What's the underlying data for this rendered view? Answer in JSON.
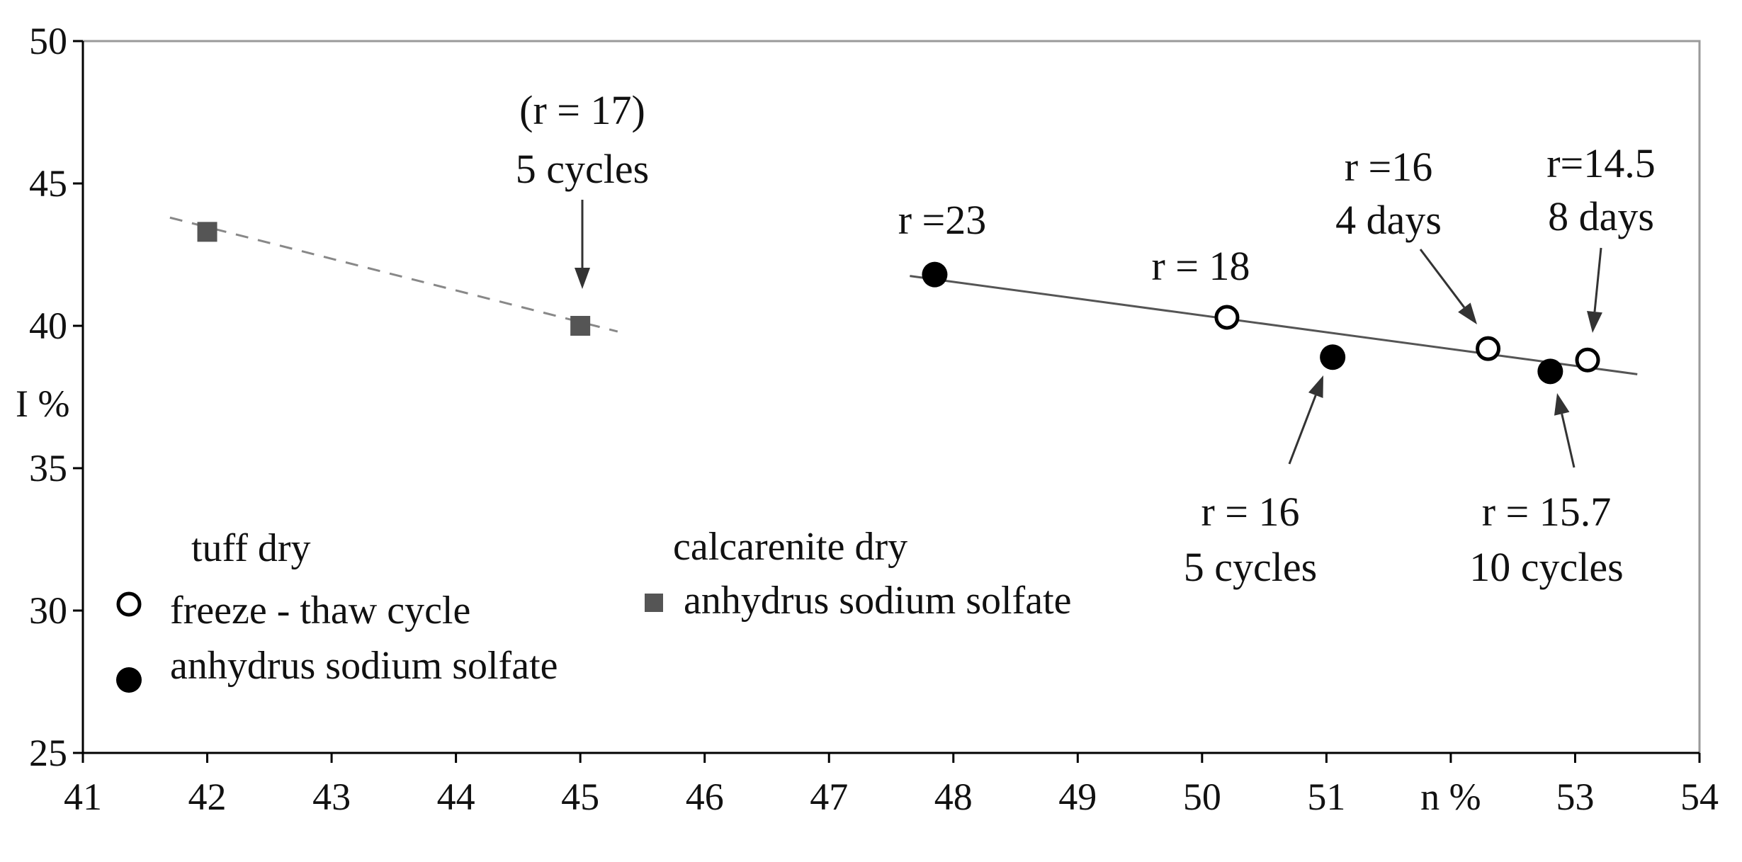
{
  "chart_data": {
    "type": "scatter",
    "title": "",
    "xlabel": "n %",
    "ylabel": "I %",
    "xlim": [
      41,
      54
    ],
    "ylim": [
      25,
      50
    ],
    "xticks": [
      41,
      42,
      43,
      44,
      45,
      46,
      47,
      48,
      49,
      50,
      51,
      52,
      53,
      54
    ],
    "yticks": [
      25,
      30,
      35,
      40,
      45,
      50
    ],
    "x_tick_labels": [
      "41",
      "42",
      "43",
      "44",
      "45",
      "46",
      "47",
      "48",
      "49",
      "50",
      "51",
      "n %",
      "53",
      "54"
    ],
    "y_tick_labels": [
      "25",
      "30",
      "35",
      "40",
      "45",
      "50"
    ],
    "grid": false,
    "series": [
      {
        "group": "tuff dry",
        "name": "freeze - thaw cycle",
        "marker": "open-circle",
        "color": "#000000",
        "points": [
          {
            "x": 50.2,
            "y": 40.3
          },
          {
            "x": 52.3,
            "y": 39.2
          },
          {
            "x": 53.1,
            "y": 38.8
          }
        ]
      },
      {
        "group": "tuff dry",
        "name": "anhydrus sodium solfate",
        "marker": "filled-circle",
        "color": "#000000",
        "points": [
          {
            "x": 47.85,
            "y": 41.8
          },
          {
            "x": 51.05,
            "y": 38.9
          },
          {
            "x": 52.8,
            "y": 38.4
          }
        ]
      },
      {
        "group": "calcarenite dry",
        "name": "anhydrus sodium solfate",
        "marker": "filled-square",
        "color": "#555555",
        "points": [
          {
            "x": 42.0,
            "y": 43.3
          },
          {
            "x": 45.0,
            "y": 40.0
          }
        ]
      }
    ],
    "trendlines": [
      {
        "style": "solid",
        "color": "#555555",
        "from": {
          "x": 47.65,
          "y": 41.75
        },
        "to": {
          "x": 53.5,
          "y": 38.3
        }
      },
      {
        "style": "dashed",
        "color": "#888888",
        "from": {
          "x": 41.7,
          "y": 43.8
        },
        "to": {
          "x": 45.3,
          "y": 39.8
        }
      }
    ],
    "annotations": [
      {
        "lines": [
          "(r = 17)",
          "5 cycles"
        ],
        "point": {
          "x": 45.0,
          "y": 40.0
        },
        "arrow": true
      },
      {
        "lines": [
          "r =23"
        ],
        "point": {
          "x": 47.85,
          "y": 41.8
        },
        "arrow": false
      },
      {
        "lines": [
          "r = 18"
        ],
        "point": {
          "x": 50.2,
          "y": 40.3
        },
        "arrow": false
      },
      {
        "lines": [
          "r =16",
          "4 days"
        ],
        "point": {
          "x": 52.3,
          "y": 39.2
        },
        "arrow": true
      },
      {
        "lines": [
          "r=14.5",
          "8 days"
        ],
        "point": {
          "x": 53.1,
          "y": 38.8
        },
        "arrow": true
      },
      {
        "lines": [
          "r = 16",
          "5 cycles"
        ],
        "point": {
          "x": 51.05,
          "y": 38.9
        },
        "arrow": true
      },
      {
        "lines": [
          "r = 15.7",
          "10 cycles"
        ],
        "point": {
          "x": 52.8,
          "y": 38.4
        },
        "arrow": true
      }
    ],
    "legend": {
      "placement": "bottom-left",
      "groups": [
        {
          "title": "tuff dry",
          "entries": [
            {
              "label": "freeze - thaw cycle",
              "marker": "open-circle"
            },
            {
              "label": "anhydrus sodium solfate",
              "marker": "filled-circle"
            }
          ]
        },
        {
          "title": "calcarenite dry",
          "entries": [
            {
              "label": "anhydrus sodium solfate",
              "marker": "filled-square"
            }
          ]
        }
      ]
    }
  }
}
